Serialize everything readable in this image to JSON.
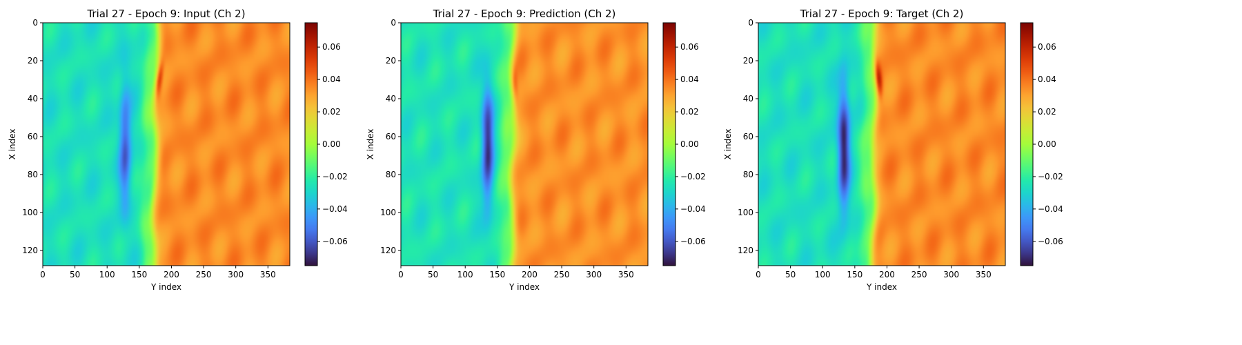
{
  "colormap": {
    "name": "turbo",
    "stops": [
      "#30123b",
      "#4145ab",
      "#4675ed",
      "#39a2fc",
      "#1bcfd4",
      "#24eca6",
      "#61fc6c",
      "#a4fc3b",
      "#d1e834",
      "#f3c63a",
      "#fe9b2d",
      "#f36315",
      "#d93806",
      "#b11901",
      "#7a0402"
    ]
  },
  "chart_data": [
    {
      "type": "heatmap",
      "title": "Trial 27 - Epoch 9: Input (Ch 2)",
      "xlabel": "Y index",
      "ylabel": "X index",
      "xlim": [
        0,
        384
      ],
      "ylim": [
        128,
        0
      ],
      "xticks": [
        "0",
        "50",
        "100",
        "150",
        "200",
        "250",
        "300",
        "350"
      ],
      "yticks": [
        "0",
        "20",
        "40",
        "60",
        "80",
        "100",
        "120"
      ],
      "colorbar": {
        "vmin": -0.075,
        "vmax": 0.075,
        "ticks": [
          "−0.06",
          "−0.04",
          "−0.02",
          "0.00",
          "0.02",
          "0.04",
          "0.06"
        ]
      },
      "field": {
        "background_left": -0.026,
        "background_right": 0.035,
        "front_top_y": 178,
        "front_bottom_y": 172,
        "trough_center_y": 128,
        "trough_min": -0.058,
        "peak_center_x": 30,
        "peak_max": 0.066
      }
    },
    {
      "type": "heatmap",
      "title": "Trial 27 - Epoch 9: Prediction (Ch 2)",
      "xlabel": "Y index",
      "ylabel": "X index",
      "xlim": [
        0,
        384
      ],
      "ylim": [
        128,
        0
      ],
      "xticks": [
        "0",
        "50",
        "100",
        "150",
        "200",
        "250",
        "300",
        "350"
      ],
      "yticks": [
        "0",
        "20",
        "40",
        "60",
        "80",
        "100",
        "120"
      ],
      "colorbar": {
        "vmin": -0.075,
        "vmax": 0.075,
        "ticks": [
          "−0.06",
          "−0.04",
          "−0.02",
          "0.00",
          "0.02",
          "0.04",
          "0.06"
        ]
      },
      "field": {
        "background_left": -0.025,
        "background_right": 0.034,
        "front_top_y": 175,
        "front_bottom_y": 172,
        "trough_center_y": 135,
        "trough_min": -0.068,
        "peak_center_x": 32,
        "peak_max": 0.05
      }
    },
    {
      "type": "heatmap",
      "title": "Trial 27 - Epoch 9: Target (Ch 2)",
      "xlabel": "Y index",
      "ylabel": "X index",
      "xlim": [
        0,
        384
      ],
      "ylim": [
        128,
        0
      ],
      "xticks": [
        "0",
        "50",
        "100",
        "150",
        "200",
        "250",
        "300",
        "350"
      ],
      "yticks": [
        "0",
        "20",
        "40",
        "60",
        "80",
        "100",
        "120"
      ],
      "colorbar": {
        "vmin": -0.075,
        "vmax": 0.075,
        "ticks": [
          "−0.06",
          "−0.04",
          "−0.02",
          "0.00",
          "0.02",
          "0.04",
          "0.06"
        ]
      },
      "field": {
        "background_left": -0.026,
        "background_right": 0.035,
        "front_top_y": 182,
        "front_bottom_y": 178,
        "trough_center_y": 133,
        "trough_min": -0.072,
        "peak_center_x": 30,
        "peak_max": 0.068
      }
    }
  ]
}
